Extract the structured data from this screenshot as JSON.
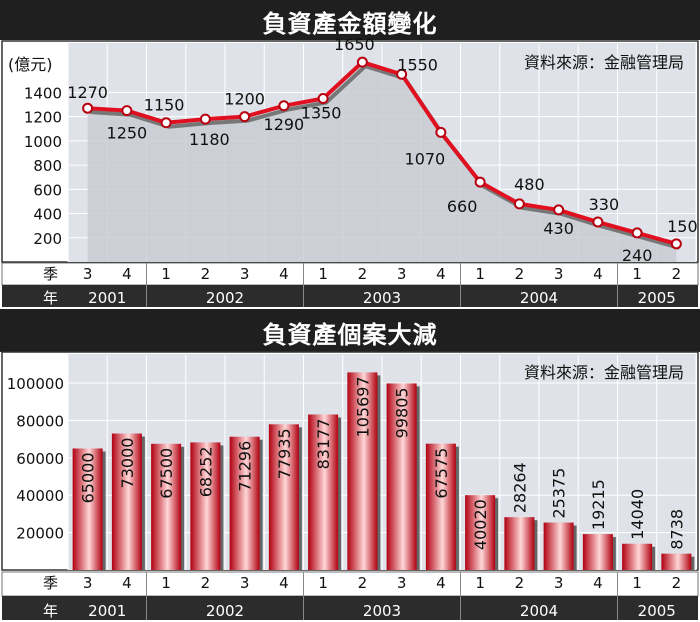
{
  "colors": {
    "line": "#e01020",
    "bar_dark": "#b00010",
    "bar_light": "#ffd7d7",
    "panel_bg": "#dfe2e8",
    "header_bg": "#1f1f1f",
    "year_row_bg": "#2c2c2c"
  },
  "chart_data": [
    {
      "type": "line",
      "title": "負資產金額變化",
      "ylabel": "(億元)",
      "source": "資料來源：金融管理局",
      "ylim": [
        0,
        1800
      ],
      "yticks": [
        200,
        400,
        600,
        800,
        1000,
        1200,
        1400
      ],
      "row_labels": {
        "quarter": "季",
        "year": "年"
      },
      "x": [
        "2001 Q3",
        "2001 Q4",
        "2002 Q1",
        "2002 Q2",
        "2002 Q3",
        "2002 Q4",
        "2003 Q1",
        "2003 Q2",
        "2003 Q3",
        "2003 Q4",
        "2004 Q1",
        "2004 Q2",
        "2004 Q3",
        "2004 Q4",
        "2005 Q1",
        "2005 Q2"
      ],
      "quarters": [
        "3",
        "4",
        "1",
        "2",
        "3",
        "4",
        "1",
        "2",
        "3",
        "4",
        "1",
        "2",
        "3",
        "4",
        "1",
        "2"
      ],
      "years": [
        {
          "label": "2001",
          "count": 2
        },
        {
          "label": "2002",
          "count": 4
        },
        {
          "label": "2003",
          "count": 4
        },
        {
          "label": "2004",
          "count": 4
        },
        {
          "label": "2005",
          "count": 2
        }
      ],
      "values": [
        1270,
        1250,
        1150,
        1180,
        1200,
        1290,
        1350,
        1650,
        1550,
        1070,
        660,
        480,
        430,
        330,
        240,
        150
      ],
      "grid": true
    },
    {
      "type": "bar",
      "title": "負資產個案大減",
      "source": "資料來源：金融管理局",
      "ylim": [
        0,
        115000
      ],
      "yticks": [
        20000,
        40000,
        60000,
        80000,
        100000
      ],
      "row_labels": {
        "quarter": "季",
        "year": "年"
      },
      "categories": [
        "2001 Q3",
        "2001 Q4",
        "2002 Q1",
        "2002 Q2",
        "2002 Q3",
        "2002 Q4",
        "2003 Q1",
        "2003 Q2",
        "2003 Q3",
        "2003 Q4",
        "2004 Q1",
        "2004 Q2",
        "2004 Q3",
        "2004 Q4",
        "2005 Q1",
        "2005 Q2"
      ],
      "quarters": [
        "3",
        "4",
        "1",
        "2",
        "3",
        "4",
        "1",
        "2",
        "3",
        "4",
        "1",
        "2",
        "3",
        "4",
        "1",
        "2"
      ],
      "years": [
        {
          "label": "2001",
          "count": 2
        },
        {
          "label": "2002",
          "count": 4
        },
        {
          "label": "2003",
          "count": 4
        },
        {
          "label": "2004",
          "count": 4
        },
        {
          "label": "2005",
          "count": 2
        }
      ],
      "values": [
        65000,
        73000,
        67500,
        68252,
        71296,
        77935,
        83177,
        105697,
        99805,
        67575,
        40020,
        28264,
        25375,
        19215,
        14040,
        8738
      ],
      "grid": true
    }
  ]
}
